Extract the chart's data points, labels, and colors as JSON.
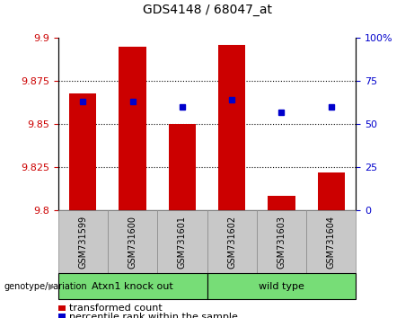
{
  "title": "GDS4148 / 68047_at",
  "categories": [
    "GSM731599",
    "GSM731600",
    "GSM731601",
    "GSM731602",
    "GSM731603",
    "GSM731604"
  ],
  "red_values": [
    9.868,
    9.895,
    9.85,
    9.896,
    9.808,
    9.822
  ],
  "blue_values": [
    63,
    63,
    60,
    64,
    57,
    60
  ],
  "ymin": 9.8,
  "ymax": 9.9,
  "yticks": [
    9.8,
    9.825,
    9.85,
    9.875,
    9.9
  ],
  "ytick_labels": [
    "9.8",
    "9.825",
    "9.85",
    "9.875",
    "9.9"
  ],
  "y2min": 0,
  "y2max": 100,
  "y2ticks": [
    0,
    25,
    50,
    75,
    100
  ],
  "y2tick_labels": [
    "0",
    "25",
    "50",
    "75",
    "100%"
  ],
  "bar_color": "#CC0000",
  "dot_color": "#0000CC",
  "bar_width": 0.55,
  "dot_size": 5,
  "grid_color": "black",
  "grid_style": "dotted",
  "left_tick_color": "#CC0000",
  "right_tick_color": "#0000CC",
  "group1_label": "Atxn1 knock out",
  "group2_label": "wild type",
  "group_color": "#77DD77",
  "group_edge_color": "#000000",
  "xlabel_bg": "#C8C8C8",
  "xlabel_edge": "#888888",
  "genotype_label": "genotype/variation",
  "legend_red_label": "transformed count",
  "legend_blue_label": "percentile rank within the sample",
  "title_fontsize": 10,
  "axis_fontsize": 8,
  "xlabel_fontsize": 7,
  "group_fontsize": 8,
  "legend_fontsize": 8
}
